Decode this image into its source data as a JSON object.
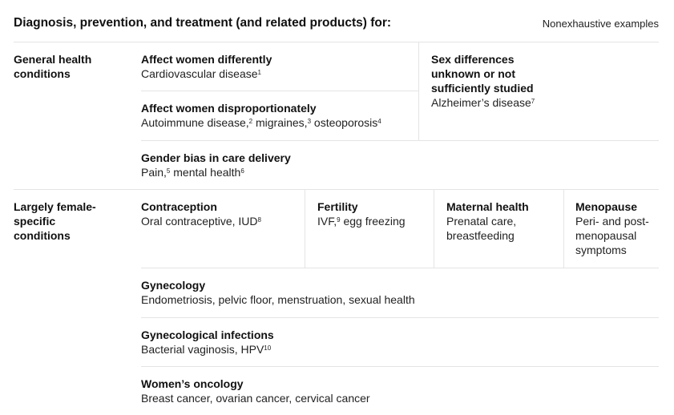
{
  "header": {
    "title": "Diagnosis, prevention, and treatment (and related products) for:",
    "note": "Nonexhaustive examples"
  },
  "general": {
    "label": "General health conditions",
    "differently": {
      "heading": "Affect women differently",
      "text": "Cardiovascular disease",
      "sup": "1"
    },
    "disproportionately": {
      "heading": "Affect women disproportionately",
      "t1": "Autoimmune disease,",
      "s1": "2",
      "t2": " migraines,",
      "s2": "3",
      "t3": " osteoporosis",
      "s3": "4"
    },
    "unknown": {
      "heading": "Sex differences unknown or not sufficiently studied",
      "text": "Alzheimer’s disease",
      "sup": "7"
    },
    "bias": {
      "heading": "Gender bias in care delivery",
      "t1": "Pain,",
      "s1": "5",
      "t2": " mental health",
      "s2": "6"
    }
  },
  "female": {
    "label": "Largely female-specific conditions",
    "contraception": {
      "heading": "Contraception",
      "text": "Oral contraceptive, IUD",
      "sup": "8"
    },
    "fertility": {
      "heading": "Fertility",
      "t1": "IVF,",
      "s1": "9",
      "t2": " egg freezing"
    },
    "maternal": {
      "heading": "Maternal health",
      "text": "Prenatal care, breastfeeding"
    },
    "menopause": {
      "heading": "Menopause",
      "text": "Peri- and post-menopausal symptoms"
    },
    "gynecology": {
      "heading": "Gynecology",
      "text": "Endometriosis, pelvic floor, menstruation, sexual health"
    },
    "infections": {
      "heading": "Gynecological infections",
      "text": "Bacterial vaginosis, HPV",
      "sup": "10"
    },
    "oncology": {
      "heading": "Women’s oncology",
      "text": "Breast cancer, ovarian cancer, cervical cancer"
    }
  }
}
